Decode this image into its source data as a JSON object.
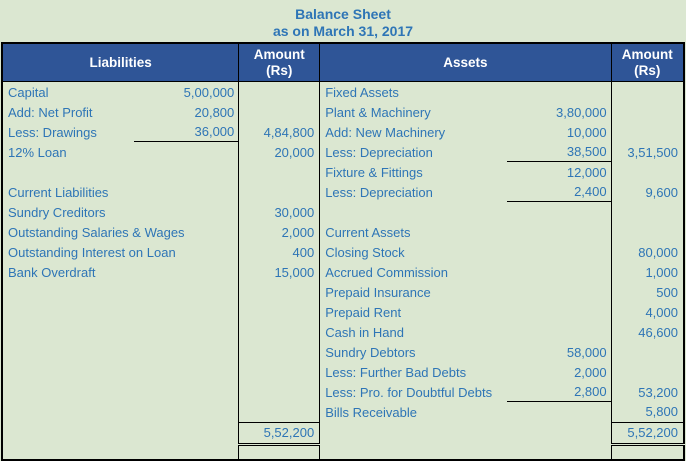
{
  "title": {
    "line1": "Balance Sheet",
    "line2": "as on March 31, 2017"
  },
  "header": {
    "liabilities": "Liabilities",
    "assets": "Assets",
    "amount": "Amount",
    "rs": "(Rs)"
  },
  "rows": [
    {
      "l": "Capital",
      "lf": "5,00,000",
      "lu": false,
      "la": "",
      "r": "Fixed Assets",
      "rf": "",
      "ru": false,
      "ra": ""
    },
    {
      "l": "Add: Net Profit",
      "lf": "20,800",
      "lu": false,
      "la": "",
      "r": "Plant & Machinery",
      "rf": "3,80,000",
      "ru": false,
      "ra": ""
    },
    {
      "l": "Less: Drawings",
      "lf": "36,000",
      "lu": true,
      "la": "4,84,800",
      "r": "Add: New Machinery",
      "rf": "10,000",
      "ru": false,
      "ra": ""
    },
    {
      "l": "12% Loan",
      "lf": "",
      "lu": false,
      "la": "20,000",
      "r": "Less: Depreciation",
      "rf": "38,500",
      "ru": true,
      "ra": "3,51,500"
    },
    {
      "l": "",
      "lf": "",
      "lu": false,
      "la": "",
      "r": "Fixture & Fittings",
      "rf": "12,000",
      "ru": false,
      "ra": ""
    },
    {
      "l": "Current Liabilities",
      "lf": "",
      "lu": false,
      "la": "",
      "r": "Less: Depreciation",
      "rf": "2,400",
      "ru": true,
      "ra": "9,600"
    },
    {
      "l": "Sundry Creditors",
      "lf": "",
      "lu": false,
      "la": "30,000",
      "r": "",
      "rf": "",
      "ru": false,
      "ra": ""
    },
    {
      "l": "Outstanding Salaries & Wages",
      "lf": "",
      "lu": false,
      "la": "2,000",
      "r": "Current Assets",
      "rf": "",
      "ru": false,
      "ra": ""
    },
    {
      "l": "Outstanding Interest on Loan",
      "lf": "",
      "lu": false,
      "la": "400",
      "r": "Closing Stock",
      "rf": "",
      "ru": false,
      "ra": "80,000"
    },
    {
      "l": "Bank Overdraft",
      "lf": "",
      "lu": false,
      "la": "15,000",
      "r": "Accrued Commission",
      "rf": "",
      "ru": false,
      "ra": "1,000"
    },
    {
      "l": "",
      "lf": "",
      "lu": false,
      "la": "",
      "r": "Prepaid Insurance",
      "rf": "",
      "ru": false,
      "ra": "500"
    },
    {
      "l": "",
      "lf": "",
      "lu": false,
      "la": "",
      "r": "Prepaid Rent",
      "rf": "",
      "ru": false,
      "ra": "4,000"
    },
    {
      "l": "",
      "lf": "",
      "lu": false,
      "la": "",
      "r": "Cash in Hand",
      "rf": "",
      "ru": false,
      "ra": "46,600"
    },
    {
      "l": "",
      "lf": "",
      "lu": false,
      "la": "",
      "r": "Sundry Debtors",
      "rf": "58,000",
      "ru": false,
      "ra": ""
    },
    {
      "l": "",
      "lf": "",
      "lu": false,
      "la": "",
      "r": "Less: Further Bad Debts",
      "rf": "2,000",
      "ru": false,
      "ra": ""
    },
    {
      "l": "",
      "lf": "",
      "lu": false,
      "la": "",
      "r": "Less: Pro. for Doubtful Debts",
      "rf": "2,800",
      "ru": true,
      "ra": "53,200"
    },
    {
      "l": "",
      "lf": "",
      "lu": false,
      "la": "",
      "r": "Bills Receivable",
      "rf": "",
      "ru": false,
      "ra": "5,800"
    }
  ],
  "totals": {
    "left": "5,52,200",
    "right": "5,52,200"
  },
  "colors": {
    "background_green": "#dbe7d1",
    "header_blue": "#2f5597",
    "text_blue": "#2e75b6",
    "header_text": "#ffffff",
    "border_black": "#000000"
  }
}
